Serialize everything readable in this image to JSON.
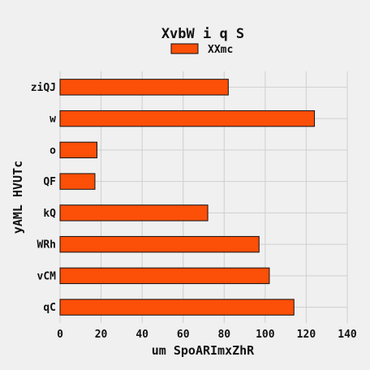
{
  "chart_data": {
    "type": "bar",
    "orientation": "horizontal",
    "title": "XvbW i  q S",
    "xlabel": "um SpoARImxZhR",
    "ylabel": "yAML HVUTc",
    "categories": [
      "qC",
      "vCM",
      "WRh",
      "kQ",
      "QF",
      "o",
      "w",
      "ziQJ"
    ],
    "series": [
      {
        "name": "XXmc",
        "values": [
          114,
          102,
          97,
          72,
          17,
          18,
          124,
          82
        ],
        "color": "#fc4f08"
      }
    ],
    "xlim": [
      0,
      140
    ],
    "xticks": [
      "0",
      "20",
      "40",
      "60",
      "80",
      "100",
      "120",
      "140"
    ],
    "grid": true,
    "legend": "top-center"
  }
}
